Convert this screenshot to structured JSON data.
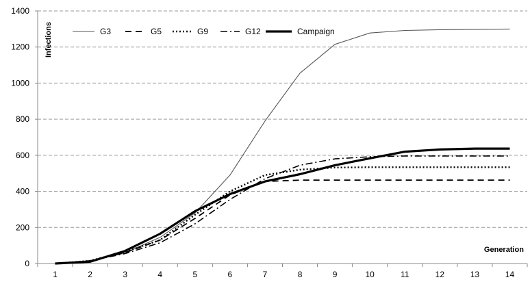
{
  "chart_data": {
    "type": "line",
    "xlabel": "Generation",
    "ylabel": "Infections",
    "x": [
      1,
      2,
      3,
      4,
      5,
      6,
      7,
      8,
      9,
      10,
      11,
      12,
      13,
      14
    ],
    "ylim": [
      0,
      1400
    ],
    "yticks": [
      0,
      200,
      400,
      600,
      800,
      1000,
      1200,
      1400
    ],
    "grid": true,
    "legend_position": "top",
    "series": [
      {
        "name": "G3",
        "style": "thin-solid",
        "values": [
          0,
          15,
          60,
          145,
          280,
          490,
          790,
          1055,
          1215,
          1278,
          1292,
          1296,
          1298,
          1300
        ]
      },
      {
        "name": "G5",
        "style": "dashed",
        "values": [
          0,
          15,
          60,
          130,
          250,
          380,
          455,
          462,
          462,
          462,
          462,
          462,
          462,
          462
        ]
      },
      {
        "name": "G9",
        "style": "dotted",
        "values": [
          0,
          15,
          65,
          130,
          270,
          400,
          490,
          520,
          532,
          534,
          534,
          534,
          534,
          534
        ]
      },
      {
        "name": "G12",
        "style": "dash-dot",
        "values": [
          0,
          15,
          55,
          115,
          220,
          355,
          470,
          545,
          580,
          592,
          596,
          596,
          596,
          596
        ]
      },
      {
        "name": "Campaign",
        "style": "thick-solid",
        "values": [
          0,
          10,
          70,
          165,
          290,
          385,
          455,
          495,
          545,
          583,
          620,
          632,
          637,
          637
        ]
      }
    ]
  }
}
